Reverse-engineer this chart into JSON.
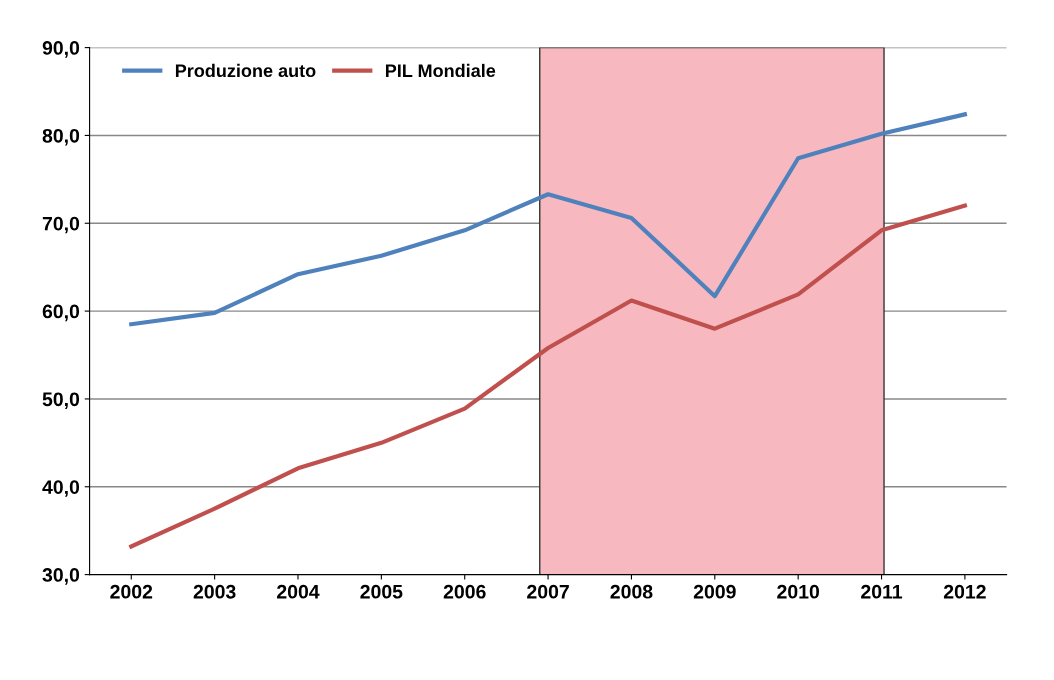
{
  "chart_data": {
    "type": "line",
    "x": [
      2002,
      2003,
      2004,
      2005,
      2006,
      2007,
      2008,
      2009,
      2010,
      2011,
      2012
    ],
    "series": [
      {
        "name": "Produzione auto",
        "color": "#4f81bd",
        "values": [
          58.5,
          59.8,
          64.2,
          66.3,
          69.2,
          73.3,
          70.6,
          61.7,
          77.4,
          80.2,
          82.4
        ]
      },
      {
        "name": "PIL Mondiale",
        "color": "#c0504d",
        "values": [
          33.2,
          37.5,
          42.1,
          45.0,
          48.9,
          55.8,
          61.2,
          58.0,
          61.9,
          69.2,
          72.0
        ]
      }
    ],
    "xlim": [
      2001.5,
      2012.5
    ],
    "xticks": [
      2002,
      2003,
      2004,
      2005,
      2006,
      2007,
      2008,
      2009,
      2010,
      2011,
      2012
    ],
    "ylim": [
      30,
      90
    ],
    "yticks": [
      {
        "value": 30,
        "label": "30,0"
      },
      {
        "value": 40,
        "label": "40,0"
      },
      {
        "value": 50,
        "label": "50,0"
      },
      {
        "value": 60,
        "label": "60,0"
      },
      {
        "value": 70,
        "label": "70,0"
      },
      {
        "value": 80,
        "label": "80,0"
      },
      {
        "value": 90,
        "label": "90,0"
      }
    ],
    "bands": [
      {
        "axis": "x",
        "from": 2006.9,
        "to": 2011.03,
        "color": "#f7b9bf"
      }
    ],
    "grid": "y",
    "legend": "top left",
    "marker": "none",
    "line_style": "solid"
  }
}
